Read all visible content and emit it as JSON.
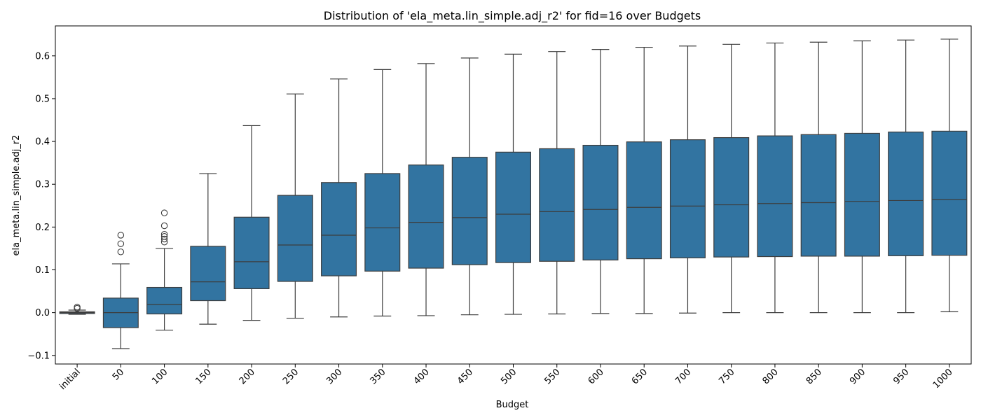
{
  "chart_data": {
    "type": "box",
    "title": "Distribution of 'ela_meta.lin_simple.adj_r2' for fid=16 over Budgets",
    "xlabel": "Budget",
    "ylabel": "ela_meta.lin_simple.adj_r2",
    "categories": [
      "initial",
      "50",
      "100",
      "150",
      "200",
      "250",
      "300",
      "350",
      "400",
      "450",
      "500",
      "550",
      "600",
      "650",
      "700",
      "750",
      "800",
      "850",
      "900",
      "950",
      "1000"
    ],
    "ylim": [
      -0.12,
      0.67
    ],
    "yticks": [
      -0.1,
      0.0,
      0.1,
      0.2,
      0.3,
      0.4,
      0.5,
      0.6
    ],
    "ytick_labels": [
      "−0.1",
      "0.0",
      "0.1",
      "0.2",
      "0.3",
      "0.4",
      "0.5",
      "0.6"
    ],
    "grid": false,
    "box_color": "#3274a1",
    "line_color": "#3d3d3d",
    "boxes": [
      {
        "category": "initial",
        "whisker_low": -0.004,
        "q1": -0.002,
        "median": 0.0,
        "q3": 0.002,
        "whisker_high": 0.006,
        "outliers": [
          0.01,
          0.013
        ]
      },
      {
        "category": "50",
        "whisker_low": -0.084,
        "q1": -0.035,
        "median": 0.0,
        "q3": 0.034,
        "whisker_high": 0.114,
        "outliers": [
          0.142,
          0.161,
          0.181
        ]
      },
      {
        "category": "100",
        "whisker_low": -0.041,
        "q1": -0.003,
        "median": 0.019,
        "q3": 0.059,
        "whisker_high": 0.15,
        "outliers": [
          0.165,
          0.172,
          0.178,
          0.183,
          0.203,
          0.233
        ]
      },
      {
        "category": "150",
        "whisker_low": -0.027,
        "q1": 0.028,
        "median": 0.072,
        "q3": 0.155,
        "whisker_high": 0.325,
        "outliers": []
      },
      {
        "category": "200",
        "whisker_low": -0.018,
        "q1": 0.056,
        "median": 0.119,
        "q3": 0.223,
        "whisker_high": 0.437,
        "outliers": []
      },
      {
        "category": "250",
        "whisker_low": -0.013,
        "q1": 0.073,
        "median": 0.158,
        "q3": 0.274,
        "whisker_high": 0.511,
        "outliers": []
      },
      {
        "category": "300",
        "whisker_low": -0.01,
        "q1": 0.086,
        "median": 0.181,
        "q3": 0.304,
        "whisker_high": 0.546,
        "outliers": []
      },
      {
        "category": "350",
        "whisker_low": -0.008,
        "q1": 0.097,
        "median": 0.198,
        "q3": 0.325,
        "whisker_high": 0.568,
        "outliers": []
      },
      {
        "category": "400",
        "whisker_low": -0.007,
        "q1": 0.104,
        "median": 0.211,
        "q3": 0.345,
        "whisker_high": 0.582,
        "outliers": []
      },
      {
        "category": "450",
        "whisker_low": -0.005,
        "q1": 0.112,
        "median": 0.222,
        "q3": 0.363,
        "whisker_high": 0.595,
        "outliers": []
      },
      {
        "category": "500",
        "whisker_low": -0.004,
        "q1": 0.117,
        "median": 0.23,
        "q3": 0.375,
        "whisker_high": 0.604,
        "outliers": []
      },
      {
        "category": "550",
        "whisker_low": -0.003,
        "q1": 0.12,
        "median": 0.236,
        "q3": 0.383,
        "whisker_high": 0.61,
        "outliers": []
      },
      {
        "category": "600",
        "whisker_low": -0.002,
        "q1": 0.123,
        "median": 0.241,
        "q3": 0.391,
        "whisker_high": 0.615,
        "outliers": []
      },
      {
        "category": "650",
        "whisker_low": -0.002,
        "q1": 0.126,
        "median": 0.246,
        "q3": 0.399,
        "whisker_high": 0.62,
        "outliers": []
      },
      {
        "category": "700",
        "whisker_low": -0.001,
        "q1": 0.128,
        "median": 0.249,
        "q3": 0.404,
        "whisker_high": 0.623,
        "outliers": []
      },
      {
        "category": "750",
        "whisker_low": 0.0,
        "q1": 0.13,
        "median": 0.252,
        "q3": 0.409,
        "whisker_high": 0.627,
        "outliers": []
      },
      {
        "category": "800",
        "whisker_low": 0.0,
        "q1": 0.131,
        "median": 0.255,
        "q3": 0.413,
        "whisker_high": 0.63,
        "outliers": []
      },
      {
        "category": "850",
        "whisker_low": 0.0,
        "q1": 0.132,
        "median": 0.257,
        "q3": 0.416,
        "whisker_high": 0.632,
        "outliers": []
      },
      {
        "category": "900",
        "whisker_low": 0.0,
        "q1": 0.132,
        "median": 0.26,
        "q3": 0.419,
        "whisker_high": 0.635,
        "outliers": []
      },
      {
        "category": "950",
        "whisker_low": 0.0,
        "q1": 0.133,
        "median": 0.262,
        "q3": 0.422,
        "whisker_high": 0.637,
        "outliers": []
      },
      {
        "category": "1000",
        "whisker_low": 0.002,
        "q1": 0.134,
        "median": 0.264,
        "q3": 0.424,
        "whisker_high": 0.639,
        "outliers": []
      }
    ]
  }
}
